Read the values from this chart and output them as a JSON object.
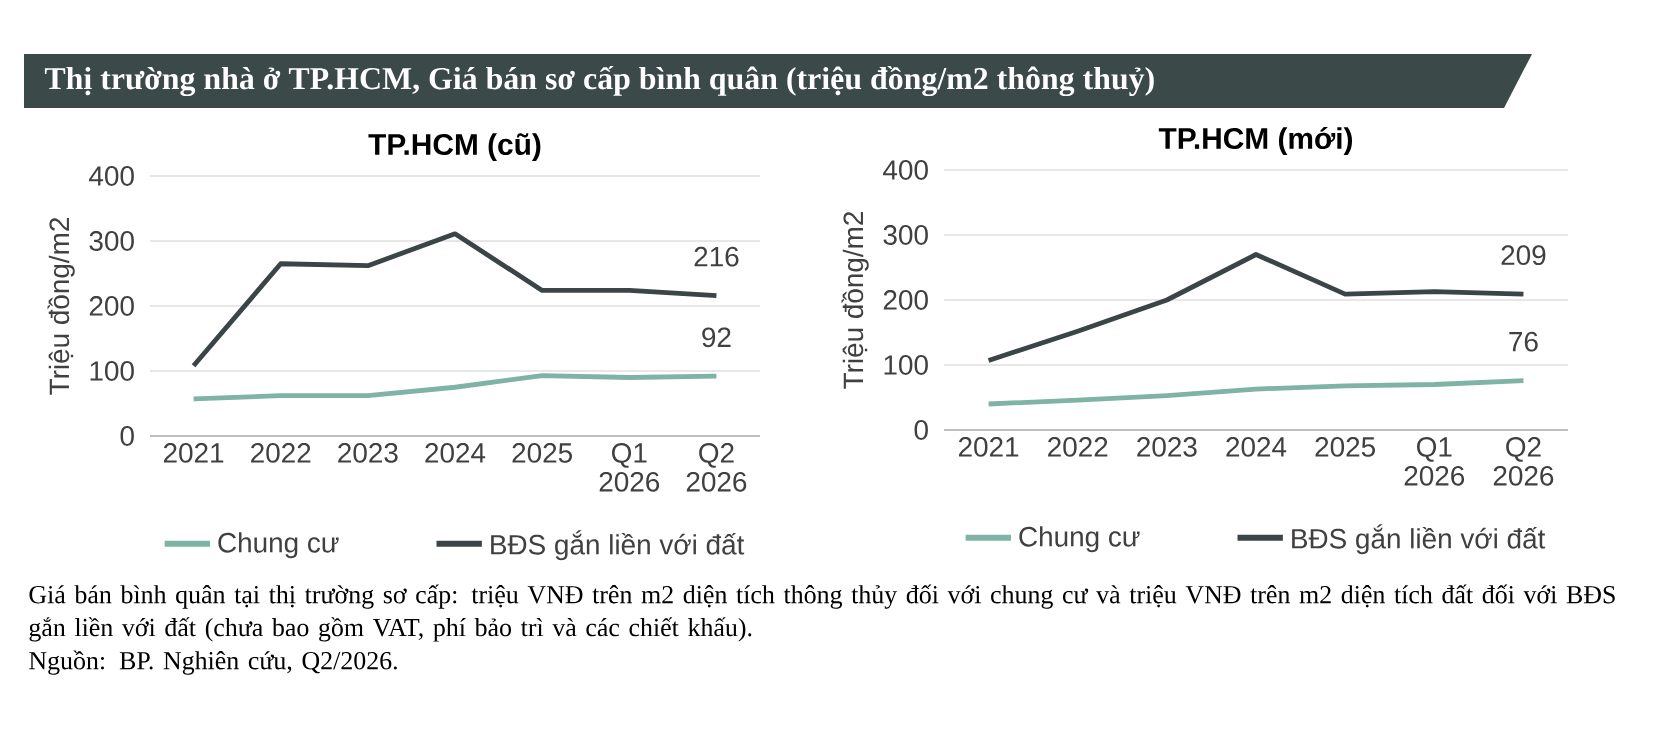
{
  "chart_data": [
    {
      "type": "other",
      "title": "Thị trường nhà ở TP.HCM, Giá bán sơ cấp bình quân (triệu đồng/m2 thông thuỷ)",
      "color": "#3b4a48",
      "annotations": [
        "Giá bán bình quân tại thị trường sơ cấp: triệu VNĐ trên m2 diện tích thông thủy đối với chung cư và triệu VNĐ trên m2 diện tích đất đối với BĐS gắn liền với đất (chưa bao gồm VAT, phí bảo trì và các chiết khấu).",
        "Nguồn: BP. Nghiên cứu, Q2/2026."
      ]
    },
    {
      "type": "line",
      "title": "TP.HCM (cũ)",
      "ylabel": "Triệu đồng/m2",
      "categories": [
        "2021",
        "2022",
        "2023",
        "2024",
        "2025",
        "Q1 2026",
        "Q2 2026"
      ],
      "ylim": [
        0,
        400
      ],
      "yticks": [
        0,
        100,
        200,
        300,
        400
      ],
      "grid": "y",
      "legend": "bottom",
      "series": [
        {
          "name": "Chung cư",
          "color": "#7fb3a5",
          "values": [
            57,
            62,
            62,
            75,
            93,
            90,
            92
          ],
          "value_labels": [
            null,
            null,
            null,
            null,
            null,
            null,
            "92"
          ]
        },
        {
          "name": "BĐS gắn liền với đất",
          "color": "#3b4446",
          "values": [
            108,
            265,
            262,
            311,
            224,
            224,
            216
          ],
          "value_labels": [
            null,
            null,
            null,
            null,
            null,
            null,
            "216"
          ]
        }
      ]
    },
    {
      "type": "line",
      "title": "TP.HCM (mới)",
      "ylabel": "Triệu đồng/m2",
      "categories": [
        "2021",
        "2022",
        "2023",
        "2024",
        "2025",
        "Q1 2026",
        "Q2 2026"
      ],
      "ylim": [
        0,
        400
      ],
      "yticks": [
        0,
        100,
        200,
        300,
        400
      ],
      "grid": "y",
      "legend": "bottom",
      "series": [
        {
          "name": "Chung cư",
          "color": "#7fb3a5",
          "values": [
            40,
            46,
            53,
            63,
            68,
            70,
            76
          ],
          "value_labels": [
            null,
            null,
            null,
            null,
            null,
            null,
            "76"
          ]
        },
        {
          "name": "BĐS gắn liền với đất",
          "color": "#3b4446",
          "values": [
            107,
            152,
            200,
            270,
            209,
            213,
            209
          ],
          "value_labels": [
            null,
            null,
            null,
            null,
            null,
            null,
            "209"
          ]
        }
      ]
    }
  ]
}
